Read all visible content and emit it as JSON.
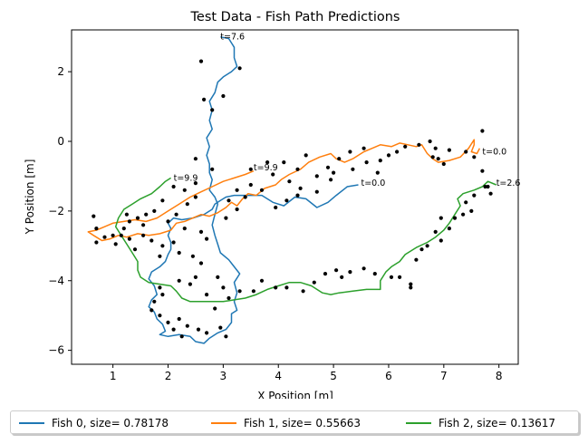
{
  "chart_data": {
    "type": "line",
    "title": "Test Data - Fish Path Predictions",
    "xlabel": "X Position [m]",
    "ylabel": "Y Position [m]",
    "xlim": [
      0.25,
      8.35
    ],
    "ylim": [
      -6.4,
      3.2
    ],
    "xticks": [
      1,
      2,
      3,
      4,
      5,
      6,
      7,
      8
    ],
    "yticks": [
      -6,
      -4,
      -2,
      0,
      2
    ],
    "grid": false,
    "legend_placement": "bottom-center",
    "series": [
      {
        "name": "Fish 0, size= 0.78178",
        "color": "#1f77b4",
        "points": [
          [
            5.45,
            -1.25
          ],
          [
            5.25,
            -1.3
          ],
          [
            5.05,
            -1.55
          ],
          [
            4.9,
            -1.75
          ],
          [
            4.7,
            -1.9
          ],
          [
            4.5,
            -1.65
          ],
          [
            4.3,
            -1.6
          ],
          [
            4.1,
            -1.85
          ],
          [
            3.9,
            -1.75
          ],
          [
            3.7,
            -1.55
          ],
          [
            3.45,
            -1.55
          ],
          [
            3.2,
            -1.55
          ],
          [
            3.05,
            -1.6
          ],
          [
            2.95,
            -1.7
          ],
          [
            2.85,
            -1.8
          ],
          [
            2.8,
            -1.95
          ],
          [
            2.65,
            -2.1
          ],
          [
            2.45,
            -2.2
          ],
          [
            2.25,
            -2.25
          ],
          [
            2.1,
            -2.2
          ],
          [
            2.0,
            -2.35
          ],
          [
            2.05,
            -2.5
          ],
          [
            2.0,
            -2.7
          ],
          [
            2.05,
            -2.9
          ],
          [
            2.05,
            -3.1
          ],
          [
            2.0,
            -3.25
          ],
          [
            1.95,
            -3.45
          ],
          [
            1.85,
            -3.6
          ],
          [
            1.7,
            -3.75
          ],
          [
            1.65,
            -3.95
          ],
          [
            1.75,
            -4.15
          ],
          [
            1.8,
            -4.4
          ],
          [
            1.7,
            -4.55
          ],
          [
            1.65,
            -4.75
          ],
          [
            1.75,
            -4.9
          ],
          [
            1.8,
            -5.1
          ],
          [
            1.9,
            -5.25
          ],
          [
            1.95,
            -5.45
          ],
          [
            1.85,
            -5.55
          ],
          [
            2.0,
            -5.6
          ],
          [
            2.2,
            -5.55
          ],
          [
            2.4,
            -5.6
          ],
          [
            2.5,
            -5.75
          ],
          [
            2.65,
            -5.8
          ],
          [
            2.75,
            -5.65
          ],
          [
            2.9,
            -5.5
          ],
          [
            3.05,
            -5.4
          ],
          [
            3.15,
            -5.2
          ],
          [
            3.15,
            -4.95
          ],
          [
            3.25,
            -4.85
          ],
          [
            3.2,
            -4.6
          ],
          [
            3.25,
            -4.35
          ],
          [
            3.2,
            -4.05
          ],
          [
            3.3,
            -3.8
          ],
          [
            3.2,
            -3.6
          ],
          [
            3.1,
            -3.4
          ],
          [
            2.95,
            -3.2
          ],
          [
            2.9,
            -2.95
          ],
          [
            2.85,
            -2.7
          ],
          [
            2.8,
            -2.4
          ],
          [
            2.85,
            -2.1
          ],
          [
            2.9,
            -1.8
          ],
          [
            2.85,
            -1.6
          ],
          [
            2.75,
            -1.4
          ],
          [
            2.8,
            -1.1
          ],
          [
            2.75,
            -0.9
          ],
          [
            2.75,
            -0.65
          ],
          [
            2.7,
            -0.4
          ],
          [
            2.75,
            -0.15
          ],
          [
            2.7,
            0.1
          ],
          [
            2.8,
            0.35
          ],
          [
            2.75,
            0.6
          ],
          [
            2.8,
            0.9
          ],
          [
            2.75,
            1.15
          ],
          [
            2.85,
            1.4
          ],
          [
            2.9,
            1.7
          ],
          [
            3.0,
            1.85
          ],
          [
            3.15,
            2.0
          ],
          [
            3.25,
            2.15
          ],
          [
            3.2,
            2.4
          ],
          [
            3.2,
            2.7
          ],
          [
            3.1,
            2.95
          ],
          [
            2.95,
            3.0
          ]
        ]
      },
      {
        "name": "Fish 1, size= 0.55663",
        "color": "#ff7f0e",
        "points": [
          [
            7.65,
            -0.2
          ],
          [
            7.6,
            -0.35
          ],
          [
            7.5,
            -0.3
          ],
          [
            7.55,
            -0.1
          ],
          [
            7.55,
            0.05
          ],
          [
            7.45,
            -0.2
          ],
          [
            7.3,
            -0.45
          ],
          [
            7.1,
            -0.55
          ],
          [
            6.9,
            -0.6
          ],
          [
            6.8,
            -0.5
          ],
          [
            6.7,
            -0.35
          ],
          [
            6.6,
            -0.1
          ],
          [
            6.5,
            -0.15
          ],
          [
            6.35,
            -0.1
          ],
          [
            6.2,
            -0.05
          ],
          [
            6.05,
            -0.15
          ],
          [
            5.85,
            -0.1
          ],
          [
            5.7,
            -0.2
          ],
          [
            5.55,
            -0.3
          ],
          [
            5.35,
            -0.5
          ],
          [
            5.2,
            -0.6
          ],
          [
            5.05,
            -0.5
          ],
          [
            4.95,
            -0.35
          ],
          [
            4.75,
            -0.45
          ],
          [
            4.55,
            -0.6
          ],
          [
            4.4,
            -0.8
          ],
          [
            4.2,
            -0.95
          ],
          [
            4.05,
            -1.1
          ],
          [
            3.95,
            -1.25
          ],
          [
            3.75,
            -1.35
          ],
          [
            3.6,
            -1.55
          ],
          [
            3.45,
            -1.5
          ],
          [
            3.35,
            -1.65
          ],
          [
            3.25,
            -1.85
          ],
          [
            3.15,
            -1.75
          ],
          [
            3.05,
            -1.9
          ],
          [
            2.9,
            -2.05
          ],
          [
            2.75,
            -2.15
          ],
          [
            2.6,
            -2.1
          ],
          [
            2.45,
            -2.2
          ],
          [
            2.3,
            -2.3
          ],
          [
            2.15,
            -2.35
          ],
          [
            2.05,
            -2.55
          ],
          [
            1.85,
            -2.65
          ],
          [
            1.65,
            -2.7
          ],
          [
            1.45,
            -2.65
          ],
          [
            1.25,
            -2.75
          ],
          [
            1.1,
            -2.7
          ],
          [
            0.95,
            -2.8
          ],
          [
            0.8,
            -2.85
          ],
          [
            0.65,
            -2.7
          ],
          [
            0.55,
            -2.6
          ],
          [
            0.7,
            -2.55
          ],
          [
            0.85,
            -2.45
          ],
          [
            1.0,
            -2.35
          ],
          [
            1.2,
            -2.3
          ],
          [
            1.4,
            -2.25
          ],
          [
            1.6,
            -2.3
          ],
          [
            1.8,
            -2.2
          ],
          [
            2.0,
            -2.0
          ],
          [
            2.2,
            -1.8
          ],
          [
            2.4,
            -1.6
          ],
          [
            2.6,
            -1.45
          ],
          [
            2.8,
            -1.3
          ],
          [
            3.0,
            -1.15
          ],
          [
            3.2,
            -1.05
          ],
          [
            3.4,
            -0.95
          ],
          [
            3.55,
            -0.85
          ]
        ]
      },
      {
        "name": "Fish 2, size= 0.13617",
        "color": "#2ca02c",
        "points": [
          [
            7.95,
            -1.25
          ],
          [
            7.8,
            -1.15
          ],
          [
            7.7,
            -1.3
          ],
          [
            7.55,
            -1.4
          ],
          [
            7.35,
            -1.5
          ],
          [
            7.25,
            -1.65
          ],
          [
            7.3,
            -1.85
          ],
          [
            7.2,
            -2.1
          ],
          [
            7.1,
            -2.35
          ],
          [
            7.0,
            -2.55
          ],
          [
            6.85,
            -2.75
          ],
          [
            6.7,
            -2.9
          ],
          [
            6.5,
            -3.05
          ],
          [
            6.3,
            -3.25
          ],
          [
            6.2,
            -3.45
          ],
          [
            6.05,
            -3.6
          ],
          [
            5.95,
            -3.75
          ],
          [
            5.85,
            -4.0
          ],
          [
            5.85,
            -4.25
          ],
          [
            5.6,
            -4.25
          ],
          [
            5.35,
            -4.3
          ],
          [
            5.1,
            -4.35
          ],
          [
            4.95,
            -4.4
          ],
          [
            4.8,
            -4.35
          ],
          [
            4.6,
            -4.15
          ],
          [
            4.4,
            -4.05
          ],
          [
            4.2,
            -4.05
          ],
          [
            4.0,
            -4.15
          ],
          [
            3.8,
            -4.25
          ],
          [
            3.6,
            -4.4
          ],
          [
            3.4,
            -4.5
          ],
          [
            3.2,
            -4.55
          ],
          [
            3.0,
            -4.6
          ],
          [
            2.8,
            -4.6
          ],
          [
            2.6,
            -4.6
          ],
          [
            2.4,
            -4.6
          ],
          [
            2.25,
            -4.5
          ],
          [
            2.15,
            -4.3
          ],
          [
            2.05,
            -4.15
          ],
          [
            1.85,
            -4.1
          ],
          [
            1.65,
            -4.05
          ],
          [
            1.5,
            -3.9
          ],
          [
            1.45,
            -3.7
          ],
          [
            1.45,
            -3.45
          ],
          [
            1.35,
            -3.2
          ],
          [
            1.25,
            -2.95
          ],
          [
            1.15,
            -2.7
          ],
          [
            1.05,
            -2.45
          ],
          [
            1.1,
            -2.2
          ],
          [
            1.2,
            -1.95
          ],
          [
            1.35,
            -1.8
          ],
          [
            1.5,
            -1.65
          ],
          [
            1.7,
            -1.5
          ],
          [
            1.85,
            -1.3
          ],
          [
            1.95,
            -1.15
          ],
          [
            2.05,
            -1.05
          ]
        ]
      }
    ],
    "annotations": [
      {
        "text": "t=7.6",
        "x": 2.95,
        "y": 3.0
      },
      {
        "text": "t=9.9",
        "x": 2.1,
        "y": -1.05
      },
      {
        "text": "t=9.9",
        "x": 3.55,
        "y": -0.75
      },
      {
        "text": "t=0.0",
        "x": 5.5,
        "y": -1.2
      },
      {
        "text": "t=0.0",
        "x": 7.7,
        "y": -0.3
      },
      {
        "text": "t=2.6",
        "x": 7.95,
        "y": -1.2
      }
    ],
    "scatter_points": [
      [
        2.6,
        2.3
      ],
      [
        2.65,
        1.2
      ],
      [
        2.8,
        0.9
      ],
      [
        3.0,
        1.3
      ],
      [
        3.3,
        2.1
      ],
      [
        2.5,
        -0.5
      ],
      [
        2.8,
        -0.8
      ],
      [
        2.5,
        -1.2
      ],
      [
        2.3,
        -1.4
      ],
      [
        2.5,
        -1.6
      ],
      [
        2.35,
        -1.8
      ],
      [
        2.1,
        -1.3
      ],
      [
        1.9,
        -1.7
      ],
      [
        1.75,
        -2.0
      ],
      [
        1.6,
        -2.1
      ],
      [
        1.45,
        -2.2
      ],
      [
        1.55,
        -2.4
      ],
      [
        1.3,
        -2.3
      ],
      [
        1.2,
        -2.5
      ],
      [
        1.15,
        -2.7
      ],
      [
        1.3,
        -2.8
      ],
      [
        1.4,
        -3.1
      ],
      [
        1.05,
        -2.95
      ],
      [
        0.85,
        -2.75
      ],
      [
        0.7,
        -2.5
      ],
      [
        0.65,
        -2.15
      ],
      [
        0.7,
        -2.9
      ],
      [
        1.0,
        -2.7
      ],
      [
        1.25,
        -2.1
      ],
      [
        1.55,
        -2.7
      ],
      [
        1.7,
        -2.85
      ],
      [
        1.9,
        -3.0
      ],
      [
        1.85,
        -3.3
      ],
      [
        2.1,
        -2.9
      ],
      [
        2.2,
        -3.2
      ],
      [
        2.0,
        -2.3
      ],
      [
        2.15,
        -2.1
      ],
      [
        2.3,
        -2.5
      ],
      [
        2.6,
        -2.6
      ],
      [
        2.7,
        -2.8
      ],
      [
        2.45,
        -3.3
      ],
      [
        2.6,
        -3.5
      ],
      [
        2.9,
        -3.9
      ],
      [
        2.5,
        -3.9
      ],
      [
        2.2,
        -4.0
      ],
      [
        2.4,
        -4.1
      ],
      [
        1.85,
        -4.2
      ],
      [
        1.9,
        -4.4
      ],
      [
        1.75,
        -4.6
      ],
      [
        1.7,
        -4.85
      ],
      [
        1.85,
        -5.0
      ],
      [
        2.0,
        -5.2
      ],
      [
        2.2,
        -5.1
      ],
      [
        2.35,
        -5.3
      ],
      [
        2.1,
        -5.4
      ],
      [
        2.25,
        -5.6
      ],
      [
        2.55,
        -5.4
      ],
      [
        2.7,
        -5.5
      ],
      [
        2.95,
        -5.35
      ],
      [
        3.05,
        -5.6
      ],
      [
        2.85,
        -4.8
      ],
      [
        3.1,
        -4.5
      ],
      [
        3.0,
        -4.2
      ],
      [
        2.7,
        -4.4
      ],
      [
        3.3,
        -4.3
      ],
      [
        3.55,
        -4.3
      ],
      [
        3.7,
        -4.0
      ],
      [
        3.95,
        -4.2
      ],
      [
        4.15,
        -4.2
      ],
      [
        4.45,
        -4.3
      ],
      [
        4.65,
        -4.05
      ],
      [
        4.85,
        -3.8
      ],
      [
        5.05,
        -3.7
      ],
      [
        5.15,
        -3.9
      ],
      [
        5.3,
        -3.75
      ],
      [
        5.55,
        -3.65
      ],
      [
        5.75,
        -3.8
      ],
      [
        6.05,
        -3.9
      ],
      [
        6.2,
        -3.9
      ],
      [
        6.4,
        -4.2
      ],
      [
        6.5,
        -3.4
      ],
      [
        6.6,
        -3.1
      ],
      [
        6.7,
        -3.0
      ],
      [
        6.95,
        -2.85
      ],
      [
        6.85,
        -2.6
      ],
      [
        7.1,
        -2.5
      ],
      [
        7.2,
        -2.2
      ],
      [
        6.95,
        -2.2
      ],
      [
        7.35,
        -2.1
      ],
      [
        7.5,
        -2.0
      ],
      [
        7.4,
        -1.75
      ],
      [
        7.55,
        -1.55
      ],
      [
        7.75,
        -1.3
      ],
      [
        7.85,
        -1.5
      ],
      [
        7.8,
        -1.3
      ],
      [
        7.7,
        -0.85
      ],
      [
        7.55,
        -0.45
      ],
      [
        7.4,
        -0.3
      ],
      [
        7.1,
        -0.25
      ],
      [
        6.9,
        -0.5
      ],
      [
        7.0,
        -0.65
      ],
      [
        6.85,
        -0.2
      ],
      [
        6.75,
        0.0
      ],
      [
        6.55,
        -0.1
      ],
      [
        6.3,
        -0.15
      ],
      [
        6.15,
        -0.3
      ],
      [
        6.0,
        -0.4
      ],
      [
        5.85,
        -0.55
      ],
      [
        5.6,
        -0.6
      ],
      [
        5.3,
        -0.3
      ],
      [
        5.1,
        -0.5
      ],
      [
        5.35,
        -0.8
      ],
      [
        5.0,
        -0.9
      ],
      [
        4.95,
        -1.1
      ],
      [
        4.7,
        -1.0
      ],
      [
        4.35,
        -0.8
      ],
      [
        4.1,
        -0.6
      ],
      [
        3.9,
        -0.95
      ],
      [
        4.2,
        -1.15
      ],
      [
        4.4,
        -1.35
      ],
      [
        4.7,
        -1.45
      ],
      [
        4.35,
        -1.55
      ],
      [
        4.15,
        -1.7
      ],
      [
        3.95,
        -1.9
      ],
      [
        3.7,
        -1.4
      ],
      [
        3.5,
        -1.25
      ],
      [
        3.4,
        -1.6
      ],
      [
        3.25,
        -1.95
      ],
      [
        3.1,
        -1.7
      ],
      [
        3.25,
        -1.4
      ],
      [
        3.05,
        -2.2
      ],
      [
        3.5,
        -0.8
      ],
      [
        3.8,
        -0.6
      ],
      [
        5.55,
        -0.2
      ],
      [
        5.8,
        -0.9
      ],
      [
        4.5,
        -0.4
      ],
      [
        4.9,
        -0.75
      ],
      [
        6.8,
        -0.45
      ],
      [
        7.7,
        0.3
      ],
      [
        6.4,
        -4.1
      ]
    ]
  }
}
